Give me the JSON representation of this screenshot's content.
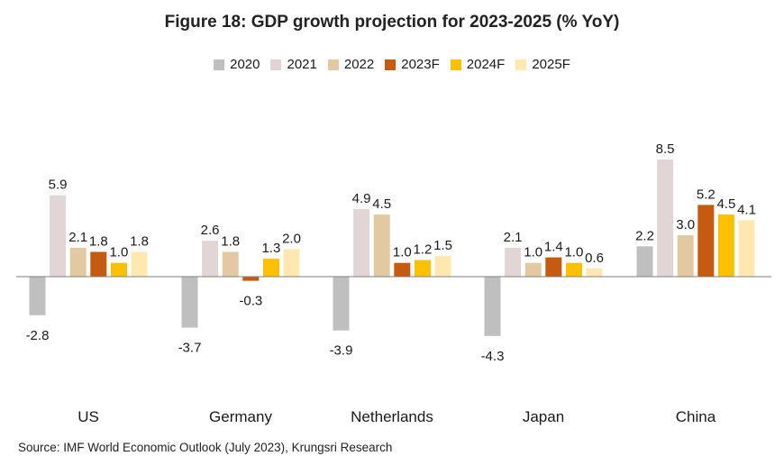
{
  "chart_data": {
    "type": "bar",
    "title": "Figure 18: GDP growth projection for 2023-2025 (% YoY)",
    "categories": [
      "US",
      "Germany",
      "Netherlands",
      "Japan",
      "China"
    ],
    "series": [
      {
        "name": "2020",
        "color": "#bfbfbf",
        "values": [
          -2.8,
          -3.7,
          -3.9,
          -4.3,
          2.2
        ]
      },
      {
        "name": "2021",
        "color": "#e2d5d6",
        "values": [
          5.9,
          2.6,
          4.9,
          2.1,
          8.5
        ]
      },
      {
        "name": "2022",
        "color": "#e2c9a2",
        "values": [
          2.1,
          1.8,
          4.5,
          1.0,
          3.0
        ]
      },
      {
        "name": "2023F",
        "color": "#c55a11",
        "values": [
          1.8,
          -0.3,
          1.0,
          1.4,
          5.2
        ]
      },
      {
        "name": "2024F",
        "color": "#ffc000",
        "values": [
          1.0,
          1.3,
          1.2,
          1.0,
          4.5
        ]
      },
      {
        "name": "2025F",
        "color": "#ffe8b0",
        "values": [
          1.8,
          2.0,
          1.5,
          0.6,
          4.1
        ]
      }
    ],
    "value_labels": [
      [
        "-2.8",
        "5.9",
        "2.1",
        "1.8",
        "1.0",
        "1.8"
      ],
      [
        "-3.7",
        "2.6",
        "1.8",
        "-0.3",
        "1.3",
        "2.0"
      ],
      [
        "-3.9",
        "4.9",
        "4.5",
        "1.0",
        "1.2",
        "1.5"
      ],
      [
        "-4.3",
        "2.1",
        "1.0",
        "1.4",
        "1.0",
        "0.6"
      ],
      [
        "2.2",
        "8.5",
        "3.0",
        "5.2",
        "4.5",
        "4.1"
      ]
    ],
    "legend_position": "top",
    "grid": false,
    "baseline_color": "#7f7f7f"
  },
  "source": "Source: IMF World Economic Outlook (July 2023), Krungsri Research"
}
